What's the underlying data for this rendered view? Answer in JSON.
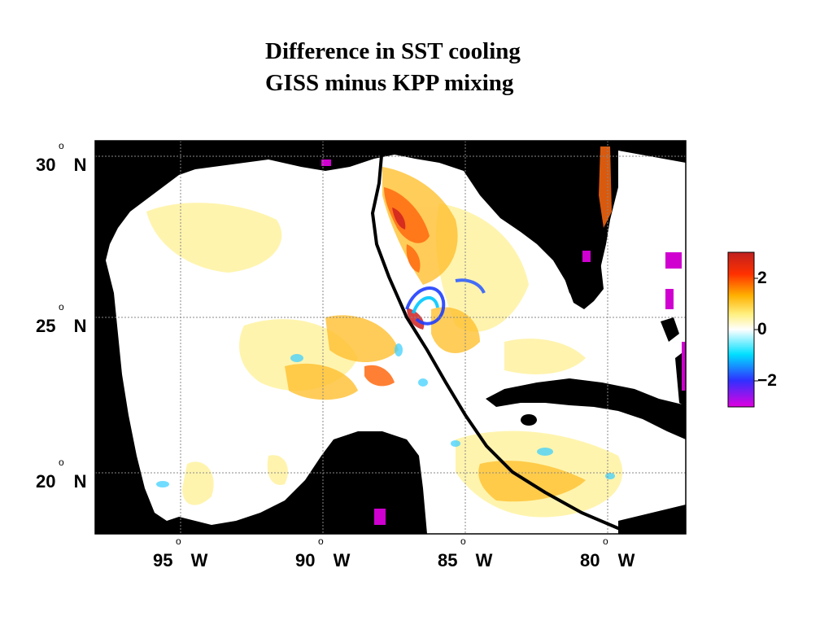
{
  "title": {
    "line1": "Difference in SST cooling",
    "line2": "GISS minus KPP mixing"
  },
  "map": {
    "type": "heatmap",
    "lat_labels": [
      {
        "value": 30,
        "text": "30",
        "hemi": "N"
      },
      {
        "value": 25,
        "text": "25",
        "hemi": "N"
      },
      {
        "value": 20,
        "text": "20",
        "hemi": "N"
      }
    ],
    "lon_labels": [
      {
        "value": -95,
        "text": "95",
        "hemi": "W"
      },
      {
        "value": -90,
        "text": "90",
        "hemi": "W"
      },
      {
        "value": -85,
        "text": "85",
        "hemi": "W"
      },
      {
        "value": -80,
        "text": "80",
        "hemi": "W"
      }
    ],
    "degree_symbol": "o",
    "grid": true,
    "land_color": "#000000",
    "track_color": "#000000"
  },
  "colorbar": {
    "range": [
      -3,
      3
    ],
    "ticks": [
      {
        "value": 2,
        "text": "2"
      },
      {
        "value": 0,
        "text": "0"
      },
      {
        "value": -2,
        "text": "−2"
      }
    ],
    "colors": [
      "#e000e0",
      "#3030ff",
      "#00e0ff",
      "#ffffff",
      "#fff080",
      "#ffb000",
      "#ff3000",
      "#c02020"
    ]
  }
}
